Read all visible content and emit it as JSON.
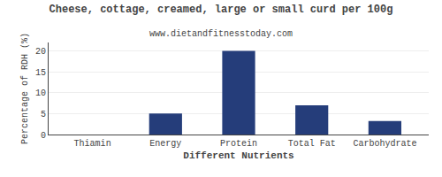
{
  "chart_data": {
    "type": "bar",
    "title": "Cheese, cottage, creamed, large or small curd per 100g",
    "subtitle": "www.dietandfitnesstoday.com",
    "xlabel": "Different Nutrients",
    "ylabel": "Percentage of RDH (%)",
    "categories": [
      "Thiamin",
      "Energy",
      "Protein",
      "Total Fat",
      "Carbohydrate"
    ],
    "values": [
      0,
      5,
      20,
      7,
      3.2
    ],
    "color": "#253d7a",
    "ylim": [
      0,
      22
    ],
    "yticks": [
      0,
      5,
      10,
      15,
      20
    ],
    "grid": true
  }
}
